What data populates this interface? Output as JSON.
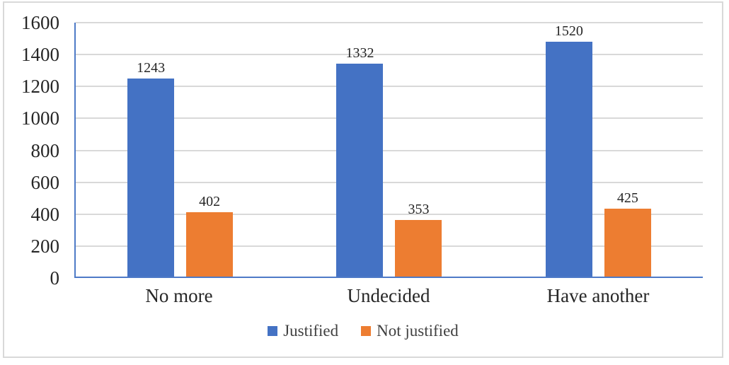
{
  "chart_data": {
    "type": "bar",
    "categories": [
      "No more",
      "Undecided",
      "Have another"
    ],
    "series": [
      {
        "name": "Justified",
        "color": "#4472C4",
        "values": [
          1243,
          1332,
          1520
        ]
      },
      {
        "name": "Not justified",
        "color": "#ED7D31",
        "values": [
          402,
          353,
          425
        ]
      }
    ],
    "title": "",
    "xlabel": "",
    "ylabel": "",
    "ylim": [
      0,
      1600
    ],
    "yticks": [
      0,
      200,
      400,
      600,
      800,
      1000,
      1200,
      1400,
      1600
    ],
    "grid": true,
    "legend_position": "bottom",
    "value_labels_shown": true
  },
  "style": {
    "frame_border_color": "#d9d9d9",
    "axis_line_color": "#4e7ac7",
    "gridline_color": "#d9d9d9",
    "tick_text_color": "#262626",
    "legend_text_color": "#404040",
    "background_color": "#ffffff"
  }
}
